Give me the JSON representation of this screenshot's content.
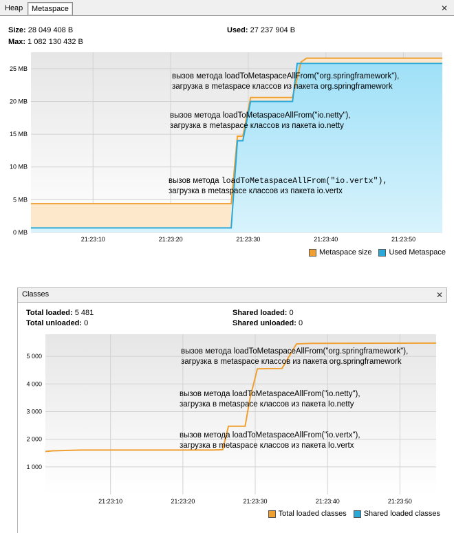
{
  "tabs": [
    {
      "label": "Heap",
      "active": false
    },
    {
      "label": "Metaspace",
      "active": true
    }
  ],
  "close_glyph": "✕",
  "metaspace": {
    "size_label": "Size:",
    "size_value": "28 049 408 B",
    "max_label": "Max:",
    "max_value": "1 082 130 432 B",
    "used_label": "Used:",
    "used_value": "27 237 904 B",
    "legend": [
      {
        "label": "Metaspace size",
        "color": "#f0a030"
      },
      {
        "label": "Used Metaspace",
        "color": "#2aa8d8"
      }
    ]
  },
  "classes": {
    "title": "Classes",
    "total_loaded_label": "Total loaded:",
    "total_loaded_value": "5 481",
    "total_unloaded_label": "Total unloaded:",
    "total_unloaded_value": "0",
    "shared_loaded_label": "Shared loaded:",
    "shared_loaded_value": "0",
    "shared_unloaded_label": "Shared unloaded:",
    "shared_unloaded_value": "0",
    "legend": [
      {
        "label": "Total loaded classes",
        "color": "#f0a030"
      },
      {
        "label": "Shared loaded classes",
        "color": "#2aa8d8"
      }
    ]
  },
  "chart_data": [
    {
      "type": "area",
      "y_unit": "MB",
      "ylim": [
        0,
        27.5
      ],
      "xlim": [
        "21:23:02",
        "21:23:55"
      ],
      "x_ticks": [
        "21:23:10",
        "21:23:20",
        "21:23:30",
        "21:23:40",
        "21:23:50"
      ],
      "y_ticks": [
        0,
        5,
        10,
        15,
        20,
        25
      ],
      "y_tick_labels": [
        "0 MB",
        "5 MB",
        "10 MB",
        "15 MB",
        "20 MB",
        "25 MB"
      ],
      "grid": true,
      "legend_position": "bottom-right",
      "series": [
        {
          "name": "Metaspace size",
          "color": "#f0a030",
          "x": [
            "21:23:02",
            "21:23:27.8",
            "21:23:28.6",
            "21:23:29.3",
            "21:23:30.3",
            "21:23:35.7",
            "21:23:36.8",
            "21:23:37.5",
            "21:23:55"
          ],
          "y": [
            4.4,
            4.4,
            14.7,
            14.7,
            20.6,
            20.6,
            26.0,
            26.6,
            26.6
          ]
        },
        {
          "name": "Used Metaspace",
          "color": "#2aa8d8",
          "x": [
            "21:23:02",
            "21:23:27.8",
            "21:23:28.6",
            "21:23:29.3",
            "21:23:30.3",
            "21:23:35.7",
            "21:23:36.3",
            "21:23:55"
          ],
          "y": [
            0.7,
            0.7,
            14.0,
            14.0,
            20.0,
            20.0,
            25.8,
            25.8
          ]
        }
      ],
      "annotations": [
        {
          "line1_prefix": "вызов метода ",
          "line1_code": "loadToMetaspaceAllFrom(\"org.springframework\"),",
          "line2": "загрузка в metaspace классов из пакета org.springframework",
          "mono": false
        },
        {
          "line1_prefix": "вызов метода ",
          "line1_code": "loadToMetaspaceAllFrom(\"io.netty\"),",
          "line2": "загрузка в metaspace классов из пакета io.netty",
          "mono": false
        },
        {
          "line1_prefix": "вызов метода ",
          "line1_code": "loadToMetaspaceAllFrom(\"io.vertx\"),",
          "line2": "загрузка в metaspace классов из пакета io.vertx",
          "mono": true
        }
      ]
    },
    {
      "type": "line",
      "ylim": [
        0,
        5800
      ],
      "xlim": [
        "21:23:01",
        "21:23:55"
      ],
      "x_ticks": [
        "21:23:10",
        "21:23:20",
        "21:23:30",
        "21:23:40",
        "21:23:50"
      ],
      "y_ticks": [
        1000,
        2000,
        3000,
        4000,
        5000
      ],
      "y_tick_labels": [
        "1 000",
        "2 000",
        "3 000",
        "4 000",
        "5 000"
      ],
      "grid": true,
      "legend_position": "bottom-right",
      "series": [
        {
          "name": "Total loaded classes",
          "color": "#f0a030",
          "x": [
            "21:23:01",
            "21:23:02",
            "21:23:06",
            "21:23:24",
            "21:23:25.5",
            "21:23:26.3",
            "21:23:28.6",
            "21:23:29.3",
            "21:23:30.3",
            "21:23:33.7",
            "21:23:35.7",
            "21:23:37.8",
            "21:23:55"
          ],
          "y": [
            1560,
            1580,
            1610,
            1610,
            1620,
            2470,
            2470,
            3510,
            4550,
            4560,
            5450,
            5470,
            5481
          ]
        }
      ],
      "annotations": [
        {
          "line1_prefix": "вызов метода ",
          "line1_code": "loadToMetaspaceAllFrom(\"org.springframework\"),",
          "line2": "загрузка в metaspace классов из пакета org.springframework"
        },
        {
          "line1_prefix": "вызов метода ",
          "line1_code": "loadToMetaspaceAllFrom(\"io.netty\"),",
          "line2": "загрузка в metaspace классов из пакета Io.netty"
        },
        {
          "line1_prefix": "вызов метода ",
          "line1_code": "loadToMetaspaceAllFrom(\"io.vertx\"),",
          "line2": "загрузка в metaspace классов из пакета Io.vertx"
        }
      ]
    }
  ]
}
